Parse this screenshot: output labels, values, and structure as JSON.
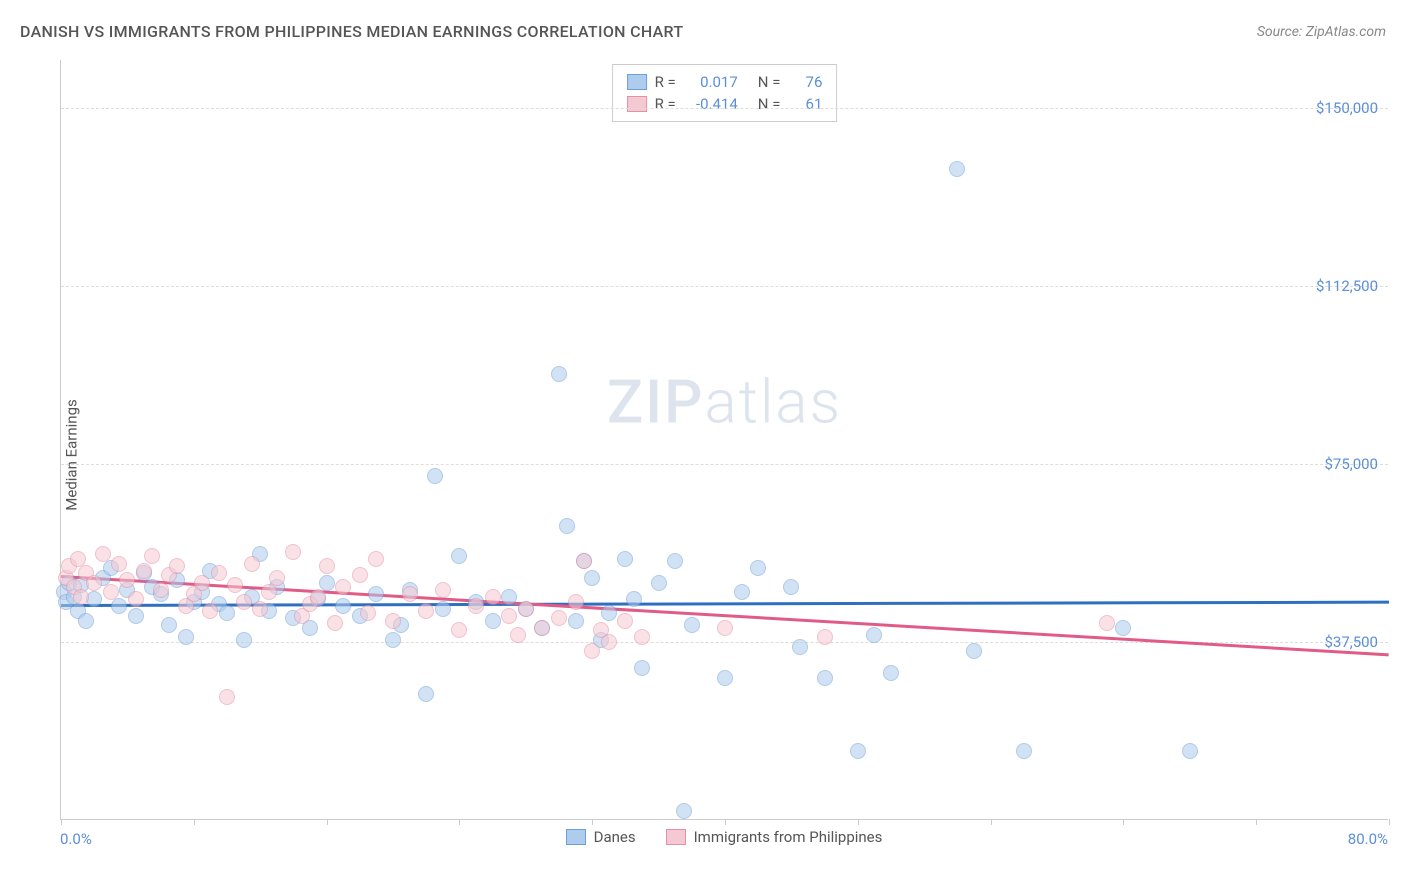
{
  "header": {
    "title": "DANISH VS IMMIGRANTS FROM PHILIPPINES MEDIAN EARNINGS CORRELATION CHART",
    "source": "Source: ZipAtlas.com"
  },
  "watermark": {
    "part1": "ZIP",
    "part2": "atlas"
  },
  "chart": {
    "type": "scatter",
    "y_label": "Median Earnings",
    "x_min": 0,
    "x_max": 80,
    "y_min": 0,
    "y_max": 160000,
    "x_tick_label_left": "0.0%",
    "x_tick_label_right": "80.0%",
    "x_ticks": [
      0,
      8,
      16,
      24,
      32,
      40,
      48,
      56,
      64,
      72,
      80
    ],
    "y_gridlines": [
      37500,
      75000,
      112500,
      150000
    ],
    "y_tick_labels": [
      "$37,500",
      "$75,000",
      "$112,500",
      "$150,000"
    ],
    "grid_color": "#dddddd",
    "axis_color": "#cccccc",
    "tick_label_color": "#5b8fd6",
    "background_color": "#ffffff",
    "point_radius": 8,
    "point_opacity": 0.55,
    "series": [
      {
        "name": "Danes",
        "color_fill": "#aeccee",
        "color_stroke": "#6f9fd8",
        "trend_color": "#2f6fc0",
        "R": "0.017",
        "N": "76",
        "trend": {
          "x1": 0,
          "y1": 45500,
          "x2": 80,
          "y2": 46200
        },
        "points": [
          [
            0.2,
            48000
          ],
          [
            0.3,
            46000
          ],
          [
            0.5,
            50000
          ],
          [
            0.8,
            47000
          ],
          [
            1,
            44000
          ],
          [
            1.2,
            49500
          ],
          [
            1.5,
            42000
          ],
          [
            2,
            46500
          ],
          [
            2.5,
            51000
          ],
          [
            3,
            53000
          ],
          [
            3.5,
            45000
          ],
          [
            4,
            48500
          ],
          [
            4.5,
            43000
          ],
          [
            5,
            52000
          ],
          [
            5.5,
            49000
          ],
          [
            6,
            47500
          ],
          [
            6.5,
            41000
          ],
          [
            7,
            50500
          ],
          [
            7.5,
            38500
          ],
          [
            8,
            46000
          ],
          [
            8.5,
            48000
          ],
          [
            9,
            52500
          ],
          [
            9.5,
            45500
          ],
          [
            10,
            43500
          ],
          [
            11,
            38000
          ],
          [
            11.5,
            47000
          ],
          [
            12,
            56000
          ],
          [
            12.5,
            44000
          ],
          [
            13,
            49000
          ],
          [
            14,
            42500
          ],
          [
            15,
            40500
          ],
          [
            15.5,
            46500
          ],
          [
            16,
            50000
          ],
          [
            17,
            45000
          ],
          [
            18,
            43000
          ],
          [
            19,
            47500
          ],
          [
            20,
            38000
          ],
          [
            20.5,
            41000
          ],
          [
            21,
            48500
          ],
          [
            22,
            26500
          ],
          [
            22.5,
            72500
          ],
          [
            23,
            44500
          ],
          [
            24,
            55500
          ],
          [
            25,
            46000
          ],
          [
            26,
            42000
          ],
          [
            27,
            47000
          ],
          [
            28,
            44500
          ],
          [
            29,
            40500
          ],
          [
            30,
            94000
          ],
          [
            30.5,
            62000
          ],
          [
            31,
            42000
          ],
          [
            31.5,
            54500
          ],
          [
            32,
            51000
          ],
          [
            32.5,
            38000
          ],
          [
            33,
            43500
          ],
          [
            34,
            55000
          ],
          [
            34.5,
            46500
          ],
          [
            35,
            32000
          ],
          [
            36,
            50000
          ],
          [
            37,
            54500
          ],
          [
            37.5,
            2000
          ],
          [
            38,
            41000
          ],
          [
            40,
            30000
          ],
          [
            41,
            48000
          ],
          [
            42,
            53000
          ],
          [
            44,
            49000
          ],
          [
            44.5,
            36500
          ],
          [
            46,
            30000
          ],
          [
            48,
            14500
          ],
          [
            49,
            39000
          ],
          [
            50,
            31000
          ],
          [
            54,
            137000
          ],
          [
            55,
            35500
          ],
          [
            58,
            14500
          ],
          [
            64,
            40500
          ],
          [
            68,
            14500
          ]
        ]
      },
      {
        "name": "Immigrants from Philippines",
        "color_fill": "#f5c9d3",
        "color_stroke": "#e690a5",
        "trend_color": "#e05b86",
        "R": "-0.414",
        "N": "61",
        "trend": {
          "x1": 0,
          "y1": 51500,
          "x2": 80,
          "y2": 35000
        },
        "points": [
          [
            0.3,
            51000
          ],
          [
            0.5,
            53500
          ],
          [
            0.8,
            49000
          ],
          [
            1,
            55000
          ],
          [
            1.2,
            47000
          ],
          [
            1.5,
            52000
          ],
          [
            2,
            50000
          ],
          [
            2.5,
            56000
          ],
          [
            3,
            48000
          ],
          [
            3.5,
            54000
          ],
          [
            4,
            50500
          ],
          [
            4.5,
            46500
          ],
          [
            5,
            52500
          ],
          [
            5.5,
            55500
          ],
          [
            6,
            48500
          ],
          [
            6.5,
            51500
          ],
          [
            7,
            53500
          ],
          [
            7.5,
            45000
          ],
          [
            8,
            47500
          ],
          [
            8.5,
            50000
          ],
          [
            9,
            44000
          ],
          [
            9.5,
            52000
          ],
          [
            10,
            26000
          ],
          [
            10.5,
            49500
          ],
          [
            11,
            46000
          ],
          [
            11.5,
            54000
          ],
          [
            12,
            44500
          ],
          [
            12.5,
            48000
          ],
          [
            13,
            51000
          ],
          [
            14,
            56500
          ],
          [
            14.5,
            43000
          ],
          [
            15,
            45500
          ],
          [
            15.5,
            47000
          ],
          [
            16,
            53500
          ],
          [
            16.5,
            41500
          ],
          [
            17,
            49000
          ],
          [
            18,
            51500
          ],
          [
            18.5,
            43500
          ],
          [
            19,
            55000
          ],
          [
            20,
            42000
          ],
          [
            21,
            47500
          ],
          [
            22,
            44000
          ],
          [
            23,
            48500
          ],
          [
            24,
            40000
          ],
          [
            25,
            45000
          ],
          [
            26,
            47000
          ],
          [
            27,
            43000
          ],
          [
            27.5,
            39000
          ],
          [
            28,
            44500
          ],
          [
            29,
            40500
          ],
          [
            30,
            42500
          ],
          [
            31,
            46000
          ],
          [
            31.5,
            54500
          ],
          [
            32,
            35500
          ],
          [
            32.5,
            40000
          ],
          [
            33,
            37500
          ],
          [
            34,
            42000
          ],
          [
            35,
            38500
          ],
          [
            40,
            40500
          ],
          [
            46,
            38500
          ],
          [
            63,
            41500
          ]
        ]
      }
    ]
  },
  "legend_top": {
    "R_label": "R =",
    "N_label": "N ="
  },
  "legend_bottom": {}
}
